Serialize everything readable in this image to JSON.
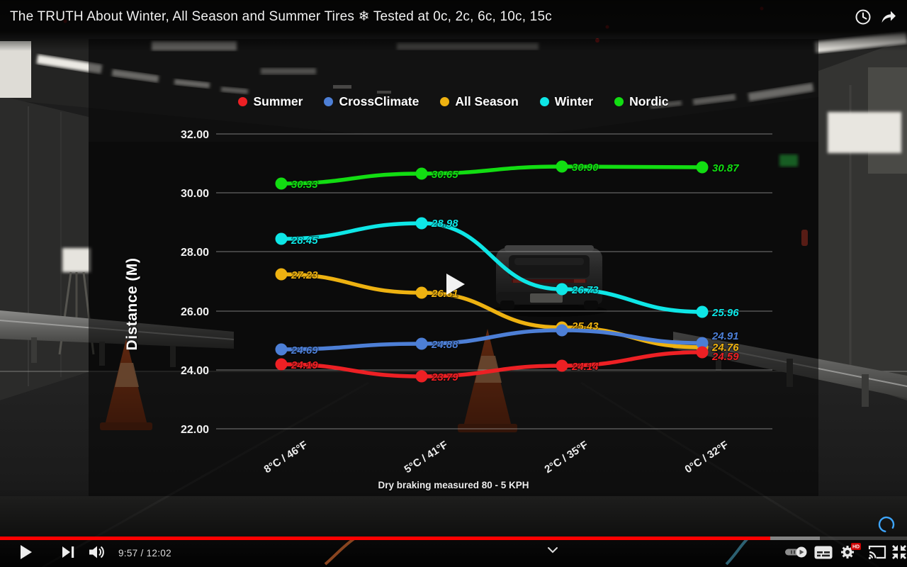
{
  "video": {
    "title": "The TRUTH About Winter, All Season and Summer Tires ❄ Tested at 0c, 2c, 6c, 10c, 15c"
  },
  "player": {
    "current_time": "9:57",
    "duration": "12:02",
    "time_display": "9:57 / 12:02",
    "progress_percent": 84.9,
    "buffered_percent": 90.4,
    "progress_color": "#ff0000",
    "hd_badge": "HD"
  },
  "icons": {
    "watch_later": "clock",
    "share": "curved-arrow",
    "play": "triangle",
    "next": "triangle-with-bar",
    "volume": "speaker-with-waves",
    "details_chevron": "chevron-down",
    "autoplay_toggle": "pill-switch",
    "subtitles": "cc-box",
    "settings": "gear",
    "cast": "screen-with-waves",
    "fullscreen": "corner-arrows",
    "buffering_spinner": "blue-ring",
    "center_play_indicator": "white-triangle"
  },
  "chart_data": {
    "type": "line",
    "title": "",
    "ylabel": "Distance (M)",
    "caption": "Dry braking measured 80 - 5 KPH",
    "categories": [
      "8°C / 46°F",
      "5°C / 41°F",
      "2°C / 35°F",
      "0°C / 32°F"
    ],
    "y_ticks": [
      "32.00",
      "30.00",
      "28.00",
      "26.00",
      "24.00",
      "22.00"
    ],
    "ylim": [
      22,
      32
    ],
    "grid": true,
    "legend_position": "top",
    "series": [
      {
        "name": "Summer",
        "color": "#ed2024",
        "values": [
          24.19,
          23.79,
          24.14,
          24.59
        ],
        "labels": [
          "24.19",
          "23.79",
          "24.14",
          "24.59"
        ]
      },
      {
        "name": "CrossClimate",
        "color": "#4d7fd6",
        "values": [
          24.69,
          24.88,
          25.35,
          24.91
        ],
        "labels": [
          "24.69",
          "24.88",
          "",
          "24.91"
        ]
      },
      {
        "name": "All Season",
        "color": "#eeb211",
        "values": [
          27.23,
          26.61,
          25.43,
          24.76
        ],
        "labels": [
          "27.23",
          "26.61",
          "25.43",
          "24.76"
        ]
      },
      {
        "name": "Winter",
        "color": "#0ee6e6",
        "values": [
          28.45,
          28.98,
          26.73,
          25.96
        ],
        "labels": [
          "28.45",
          "28.98",
          "26.73",
          "25.96"
        ]
      },
      {
        "name": "Nordic",
        "color": "#12dd12",
        "values": [
          30.33,
          30.65,
          30.9,
          30.87
        ],
        "labels": [
          "30.33",
          "30.65",
          "30.90",
          "30.87"
        ]
      }
    ]
  }
}
